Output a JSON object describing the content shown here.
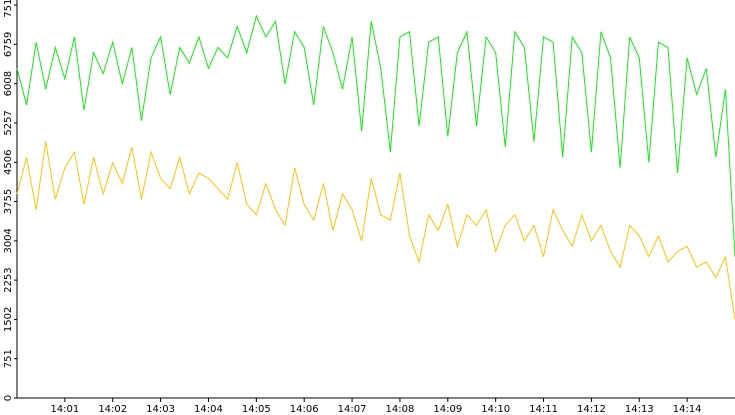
{
  "chart_data": {
    "type": "line",
    "x": [
      0,
      0.2,
      0.4,
      0.6,
      0.8,
      1,
      1.2,
      1.4,
      1.6,
      1.8,
      2,
      2.2,
      2.4,
      2.6,
      2.8,
      3,
      3.2,
      3.4,
      3.6,
      3.8,
      4,
      4.2,
      4.4,
      4.6,
      4.8,
      5,
      5.2,
      5.4,
      5.6,
      5.8,
      6,
      6.2,
      6.4,
      6.6,
      6.8,
      7,
      7.2,
      7.4,
      7.6,
      7.8,
      8,
      8.2,
      8.4,
      8.6,
      8.8,
      9,
      9.2,
      9.4,
      9.6,
      9.8,
      10,
      10.2,
      10.4,
      10.6,
      10.8,
      11,
      11.2,
      11.4,
      11.6,
      11.8,
      12,
      12.2,
      12.4,
      12.6,
      12.8,
      13,
      13.2,
      13.4,
      13.6,
      13.8,
      14,
      14.2,
      14.4,
      14.6,
      14.8,
      15
    ],
    "series": [
      {
        "color": "#19e619",
        "values": [
          6300,
          5600,
          6800,
          5900,
          6700,
          6100,
          6900,
          5500,
          6600,
          6200,
          6800,
          6000,
          6700,
          5300,
          6500,
          6900,
          5800,
          6700,
          6400,
          6900,
          6300,
          6700,
          6500,
          7100,
          6600,
          7300,
          6900,
          7200,
          6000,
          7000,
          6700,
          5600,
          7100,
          6600,
          5900,
          6900,
          5100,
          7200,
          6300,
          4700,
          6900,
          7000,
          5200,
          6800,
          6900,
          5000,
          6600,
          7000,
          5200,
          6900,
          6600,
          4800,
          7000,
          6700,
          4900,
          6900,
          6800,
          4600,
          6900,
          6600,
          4700,
          7000,
          6500,
          4400,
          6900,
          6500,
          4500,
          6800,
          6700,
          4300,
          6500,
          5800,
          6300,
          4600,
          5900,
          2700
        ]
      },
      {
        "color": "#ffc20e",
        "values": [
          3900,
          4600,
          3600,
          4900,
          3800,
          4400,
          4700,
          3700,
          4600,
          3900,
          4500,
          4100,
          4800,
          3800,
          4700,
          4200,
          4000,
          4600,
          3900,
          4300,
          4200,
          4000,
          3800,
          4500,
          3700,
          3500,
          4100,
          3600,
          3300,
          4400,
          3700,
          3400,
          4100,
          3200,
          3900,
          3600,
          3000,
          4200,
          3500,
          3400,
          4300,
          3100,
          2600,
          3500,
          3200,
          3700,
          2900,
          3500,
          3300,
          3600,
          2800,
          3300,
          3500,
          3000,
          3300,
          2700,
          3600,
          3200,
          2900,
          3500,
          3000,
          3300,
          2800,
          2500,
          3300,
          3100,
          2700,
          3100,
          2600,
          2800,
          2900,
          2500,
          2600,
          2300,
          2700,
          1500
        ]
      }
    ],
    "xlim": [
      0,
      15
    ],
    "xticks": [
      {
        "value": 1,
        "label": "14:01"
      },
      {
        "value": 2,
        "label": "14:02"
      },
      {
        "value": 3,
        "label": "14:03"
      },
      {
        "value": 4,
        "label": "14:04"
      },
      {
        "value": 5,
        "label": "14:05"
      },
      {
        "value": 6,
        "label": "14:06"
      },
      {
        "value": 7,
        "label": "14:07"
      },
      {
        "value": 8,
        "label": "14:08"
      },
      {
        "value": 9,
        "label": "14:09"
      },
      {
        "value": 10,
        "label": "14:10"
      },
      {
        "value": 11,
        "label": "14:11"
      },
      {
        "value": 12,
        "label": "14:12"
      },
      {
        "value": 13,
        "label": "14:13"
      },
      {
        "value": 14,
        "label": "14:14"
      }
    ],
    "ylim": [
      0,
      7511
    ],
    "yticks": [
      0,
      751,
      1502,
      2253,
      3004,
      3755,
      4506,
      5257,
      6008,
      6759,
      7511
    ]
  }
}
